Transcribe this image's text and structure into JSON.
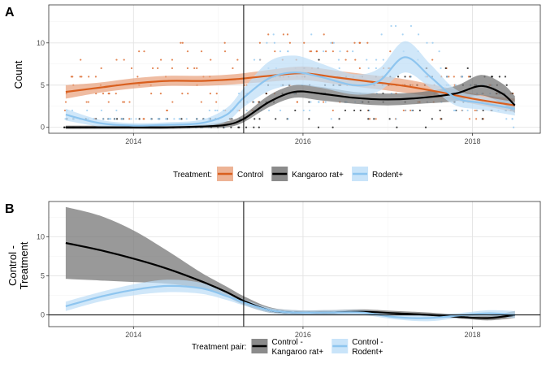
{
  "colors": {
    "control": "#D95F1E",
    "control_fill": "#E8A07A",
    "krat": "#000000",
    "krat_fill": "#777777",
    "rodent": "#8EC5EF",
    "rodent_fill": "#BCDDF7",
    "grid": "#E6E6E6",
    "axis": "#333333"
  },
  "chart_data": [
    {
      "id": "A",
      "type": "line",
      "panel_label": "A",
      "ylabel": "Count",
      "xlabel": "",
      "xlim": [
        2013.0,
        2018.8
      ],
      "ylim": [
        -0.7,
        14.5
      ],
      "xticks": [
        {
          "v": 2014,
          "label": "2014"
        },
        {
          "v": 2016,
          "label": "2016"
        },
        {
          "v": 2018,
          "label": "2018"
        }
      ],
      "yticks": [
        {
          "v": 0,
          "label": "0"
        },
        {
          "v": 5,
          "label": "5"
        },
        {
          "v": 10,
          "label": "10"
        }
      ],
      "vline": 2015.3,
      "grid": true,
      "legend": {
        "position": "bottom",
        "title": "Treatment:",
        "items": [
          {
            "key": "control",
            "label": "Control"
          },
          {
            "key": "krat",
            "label": "Kangaroo rat+"
          },
          {
            "key": "rodent",
            "label": "Rodent+"
          }
        ]
      },
      "series": [
        {
          "name": "Control",
          "key": "control",
          "x": [
            2013.2,
            2013.6,
            2014.0,
            2014.4,
            2014.8,
            2015.2,
            2015.6,
            2016.0,
            2016.4,
            2016.8,
            2017.2,
            2017.6,
            2018.0,
            2018.5
          ],
          "y": [
            4.2,
            4.7,
            5.2,
            5.5,
            5.5,
            5.7,
            6.1,
            6.4,
            5.9,
            5.4,
            4.9,
            4.2,
            3.4,
            2.6
          ],
          "lo": [
            3.4,
            4.1,
            4.6,
            4.9,
            4.9,
            5.1,
            5.4,
            5.6,
            5.1,
            4.6,
            4.1,
            3.5,
            2.8,
            1.8
          ],
          "hi": [
            5.0,
            5.3,
            5.8,
            6.1,
            6.1,
            6.3,
            6.8,
            7.2,
            6.7,
            6.2,
            5.7,
            4.9,
            4.0,
            3.4
          ]
        },
        {
          "name": "Kangaroo rat+",
          "key": "krat",
          "x": [
            2013.2,
            2013.6,
            2014.0,
            2014.4,
            2014.8,
            2015.1,
            2015.3,
            2015.6,
            2015.9,
            2016.2,
            2016.6,
            2017.0,
            2017.4,
            2017.8,
            2018.1,
            2018.35,
            2018.5
          ],
          "y": [
            0.0,
            0.0,
            0.0,
            0.0,
            0.1,
            0.3,
            1.0,
            3.0,
            4.2,
            4.0,
            3.5,
            3.3,
            3.5,
            4.0,
            4.9,
            4.0,
            2.6
          ],
          "lo": [
            -0.2,
            -0.2,
            -0.2,
            -0.2,
            -0.1,
            0.0,
            0.6,
            2.4,
            3.5,
            3.2,
            2.8,
            2.6,
            2.8,
            3.1,
            3.8,
            2.8,
            1.7
          ],
          "hi": [
            0.2,
            0.2,
            0.2,
            0.2,
            0.3,
            0.7,
            1.5,
            3.8,
            5.0,
            4.8,
            4.2,
            4.0,
            4.2,
            4.9,
            6.2,
            5.2,
            3.7
          ]
        },
        {
          "name": "Rodent+",
          "key": "rodent",
          "x": [
            2013.2,
            2013.6,
            2014.0,
            2014.4,
            2014.8,
            2015.1,
            2015.3,
            2015.6,
            2015.9,
            2016.2,
            2016.6,
            2016.9,
            2017.2,
            2017.5,
            2017.8,
            2018.1,
            2018.5
          ],
          "y": [
            1.5,
            0.5,
            0.2,
            0.3,
            0.5,
            1.5,
            3.5,
            5.8,
            6.5,
            6.0,
            5.0,
            5.5,
            8.3,
            6.0,
            3.5,
            2.9,
            2.2
          ],
          "lo": [
            0.8,
            0.1,
            -0.1,
            0.0,
            0.1,
            0.7,
            2.4,
            4.3,
            5.0,
            4.7,
            3.9,
            4.3,
            6.5,
            4.7,
            2.6,
            2.1,
            1.4
          ],
          "hi": [
            2.2,
            0.9,
            0.5,
            0.6,
            0.9,
            2.3,
            4.6,
            7.8,
            8.5,
            7.6,
            6.3,
            7.0,
            10.2,
            7.5,
            4.5,
            3.7,
            3.0
          ]
        }
      ]
    },
    {
      "id": "B",
      "type": "line",
      "panel_label": "B",
      "ylabel": "Control -\nTreatment",
      "xlabel": "",
      "xlim": [
        2013.0,
        2018.8
      ],
      "ylim": [
        -1.5,
        14.5
      ],
      "xticks": [
        {
          "v": 2014,
          "label": "2014"
        },
        {
          "v": 2016,
          "label": "2016"
        },
        {
          "v": 2018,
          "label": "2018"
        }
      ],
      "yticks": [
        {
          "v": 0,
          "label": "0"
        },
        {
          "v": 5,
          "label": "5"
        },
        {
          "v": 10,
          "label": "10"
        }
      ],
      "vline": 2015.3,
      "hline": 0,
      "grid": true,
      "legend": {
        "position": "bottom",
        "title": "Treatment pair:",
        "items": [
          {
            "key": "krat",
            "label": "Control -\nKangaroo rat+"
          },
          {
            "key": "rodent",
            "label": "Control -\nRodent+"
          }
        ]
      },
      "series": [
        {
          "name": "Control - Kangaroo rat+",
          "key": "krat",
          "x": [
            2013.2,
            2013.6,
            2014.0,
            2014.4,
            2014.8,
            2015.1,
            2015.3,
            2015.6,
            2015.9,
            2016.3,
            2016.7,
            2017.1,
            2017.5,
            2017.9,
            2018.2,
            2018.5
          ],
          "y": [
            9.2,
            8.3,
            7.2,
            5.9,
            4.3,
            2.9,
            1.8,
            0.6,
            0.3,
            0.3,
            0.4,
            0.2,
            0.0,
            -0.3,
            -0.4,
            0.0
          ],
          "lo": [
            4.6,
            4.4,
            4.2,
            4.0,
            3.4,
            2.3,
            1.3,
            0.3,
            0.1,
            0.1,
            0.2,
            0.0,
            -0.2,
            -0.5,
            -0.7,
            -0.4
          ],
          "hi": [
            13.8,
            12.7,
            10.8,
            8.2,
            5.4,
            3.6,
            2.4,
            1.0,
            0.6,
            0.6,
            0.7,
            0.5,
            0.3,
            0.0,
            -0.1,
            0.5
          ]
        },
        {
          "name": "Control - Rodent+",
          "key": "rodent",
          "x": [
            2013.2,
            2013.6,
            2014.0,
            2014.4,
            2014.8,
            2015.1,
            2015.3,
            2015.6,
            2015.9,
            2016.3,
            2016.7,
            2017.1,
            2017.5,
            2017.9,
            2018.2,
            2018.5
          ],
          "y": [
            1.1,
            2.3,
            3.2,
            3.7,
            3.4,
            2.4,
            1.6,
            0.6,
            0.3,
            0.3,
            0.3,
            -0.3,
            -0.4,
            0.0,
            0.2,
            0.0
          ],
          "lo": [
            0.5,
            1.7,
            2.5,
            2.9,
            2.7,
            1.9,
            1.2,
            0.3,
            0.0,
            0.0,
            0.0,
            -0.6,
            -0.8,
            -0.3,
            -0.2,
            -0.4
          ],
          "hi": [
            1.7,
            2.9,
            3.9,
            4.5,
            4.1,
            2.9,
            2.0,
            0.9,
            0.6,
            0.6,
            0.6,
            0.0,
            0.0,
            0.3,
            0.6,
            0.5
          ]
        }
      ]
    }
  ]
}
